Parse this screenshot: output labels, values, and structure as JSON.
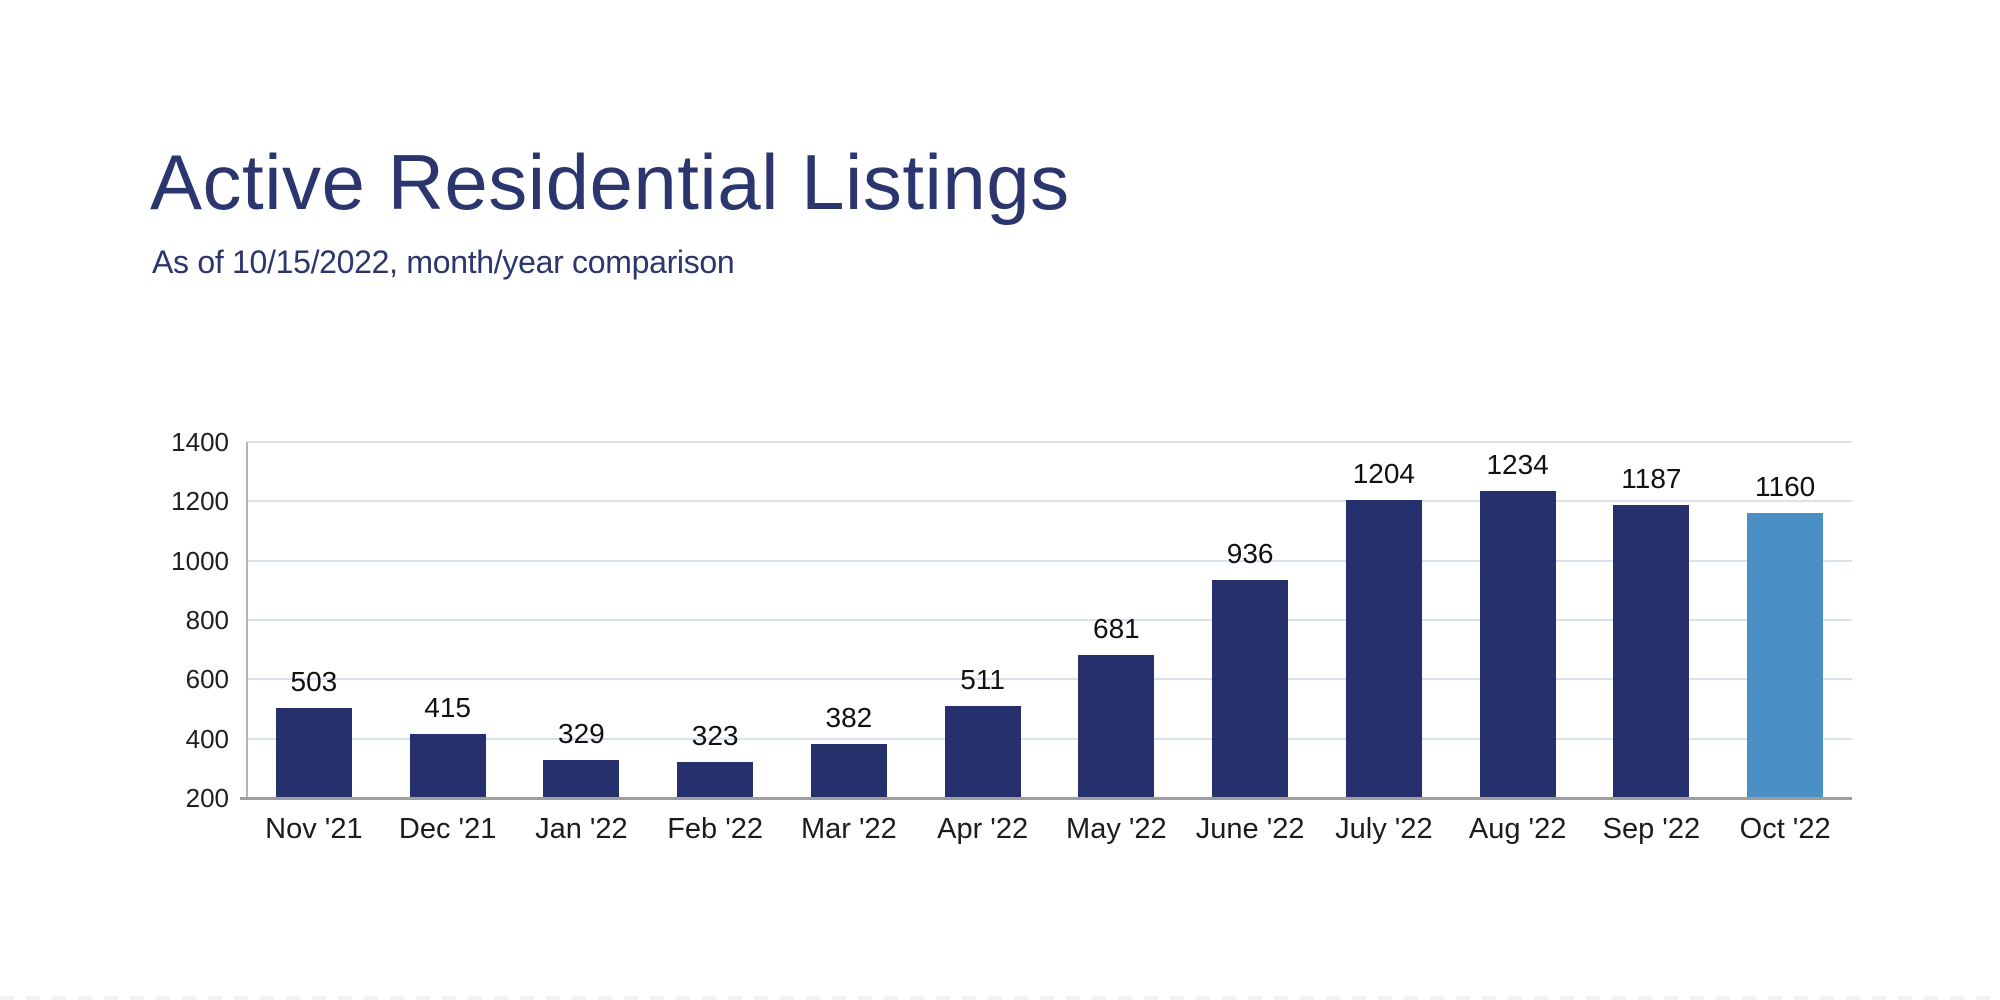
{
  "header": {
    "title": "Active Residential Listings",
    "subtitle": "As of 10/15/2022, month/year comparison"
  },
  "colors": {
    "title_text": "#2b356e",
    "bar": "#25306c",
    "bar_highlight": "#4b8fc7",
    "gridline": "#dbe2ee",
    "axis_line": "#9e9e9e",
    "label_text": "#111111"
  },
  "chart_data": {
    "type": "bar",
    "title": "Active Residential Listings",
    "subtitle": "As of 10/15/2022, month/year comparison",
    "categories": [
      "Nov '21",
      "Dec '21",
      "Jan '22",
      "Feb '22",
      "Mar '22",
      "Apr '22",
      "May '22",
      "June '22",
      "July '22",
      "Aug '22",
      "Sep '22",
      "Oct '22"
    ],
    "values": [
      503,
      415,
      329,
      323,
      382,
      511,
      681,
      936,
      1204,
      1234,
      1187,
      1160
    ],
    "highlight_index": 11,
    "xlabel": "",
    "ylabel": "",
    "ylim": [
      200,
      1400
    ],
    "yticks": [
      200,
      400,
      600,
      800,
      1000,
      1200,
      1400
    ],
    "grid": true,
    "legend": "none",
    "data_labels": true
  }
}
